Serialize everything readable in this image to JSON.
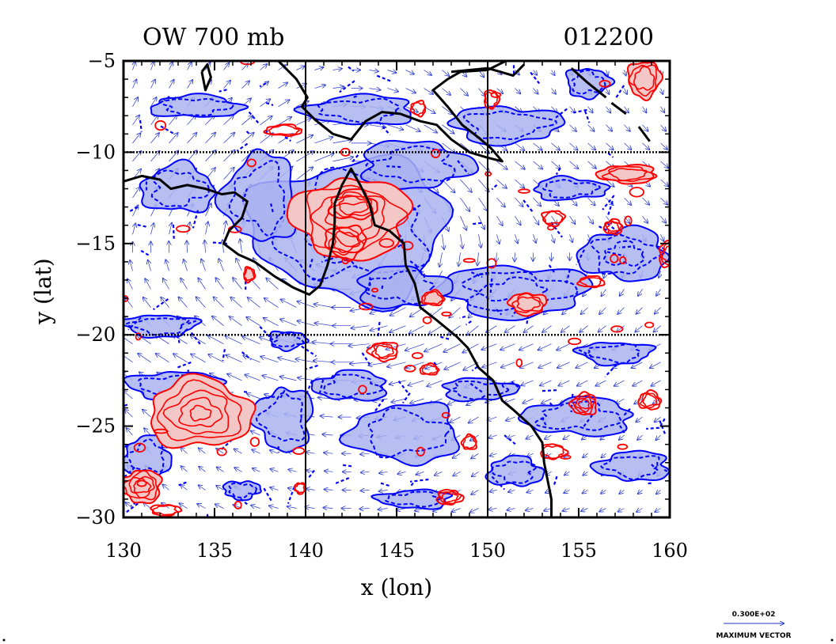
{
  "chart_data": {
    "type": "contour",
    "title_left": "OW 700 mb",
    "title_right": "012200",
    "xlabel": "x (lon)",
    "ylabel": "y (lat)",
    "xlim": [
      130,
      160
    ],
    "ylim": [
      -30,
      -5
    ],
    "xticks": [
      130,
      135,
      140,
      145,
      150,
      155,
      160
    ],
    "yticks": [
      -5,
      -10,
      -15,
      -20,
      -25,
      -30
    ],
    "xtick_labels": [
      "130",
      "135",
      "140",
      "145",
      "150",
      "155",
      "160"
    ],
    "ytick_labels": [
      "−5",
      "−10",
      "−15",
      "−20",
      "−25",
      "−30"
    ],
    "gridlines_x": [
      140,
      150
    ],
    "gridlines_y": [
      -10,
      -20
    ],
    "vector_key_value": "0.300E+02",
    "vector_key_label": "MAXIMUM VECTOR",
    "colors": {
      "positive_line": "#ff0000",
      "positive_fill": "#f4c7c7",
      "negative_line": "#0000ff",
      "negative_fill": "#a9b3f0",
      "vector": "#2233cc",
      "coast": "#000000"
    },
    "coastline": [
      [
        [
          130.0,
          -11.6
        ],
        [
          131.0,
          -11.3
        ],
        [
          132.0,
          -11.5
        ],
        [
          132.6,
          -12.0
        ],
        [
          133.5,
          -11.8
        ],
        [
          134.5,
          -12.0
        ],
        [
          135.4,
          -12.3
        ],
        [
          136.1,
          -12.2
        ],
        [
          136.8,
          -12.7
        ],
        [
          136.5,
          -13.6
        ],
        [
          135.8,
          -14.3
        ],
        [
          135.5,
          -15.0
        ],
        [
          136.3,
          -15.6
        ],
        [
          137.2,
          -16.0
        ],
        [
          138.3,
          -16.8
        ],
        [
          139.3,
          -17.4
        ],
        [
          140.2,
          -17.8
        ],
        [
          140.8,
          -17.3
        ],
        [
          141.2,
          -16.2
        ],
        [
          141.5,
          -15.0
        ],
        [
          141.6,
          -13.8
        ],
        [
          141.6,
          -12.8
        ],
        [
          142.0,
          -11.8
        ],
        [
          142.5,
          -10.9
        ],
        [
          143.0,
          -11.8
        ],
        [
          143.5,
          -12.8
        ],
        [
          143.8,
          -14.0
        ],
        [
          144.6,
          -14.3
        ],
        [
          145.4,
          -15.0
        ],
        [
          145.5,
          -16.2
        ],
        [
          146.0,
          -17.2
        ],
        [
          146.3,
          -18.5
        ],
        [
          147.2,
          -19.2
        ],
        [
          148.3,
          -20.1
        ],
        [
          148.9,
          -20.7
        ],
        [
          149.5,
          -21.8
        ],
        [
          150.3,
          -22.5
        ],
        [
          150.8,
          -23.6
        ],
        [
          151.4,
          -24.1
        ],
        [
          152.4,
          -25.0
        ],
        [
          153.0,
          -25.9
        ],
        [
          153.1,
          -27.0
        ],
        [
          153.3,
          -28.0
        ],
        [
          153.5,
          -29.0
        ],
        [
          153.5,
          -30.0
        ]
      ],
      [
        [
          138.5,
          -5.0
        ],
        [
          139.5,
          -6.0
        ],
        [
          140.1,
          -7.0
        ],
        [
          139.8,
          -7.5
        ],
        [
          140.5,
          -8.2
        ],
        [
          141.5,
          -9.0
        ],
        [
          142.5,
          -9.3
        ],
        [
          143.3,
          -8.3
        ],
        [
          144.2,
          -7.8
        ],
        [
          145.2,
          -7.9
        ],
        [
          146.3,
          -8.3
        ],
        [
          147.2,
          -8.5
        ],
        [
          148.0,
          -9.3
        ],
        [
          149.0,
          -10.0
        ],
        [
          150.0,
          -10.3
        ],
        [
          150.8,
          -10.5
        ],
        [
          150.2,
          -9.8
        ],
        [
          149.5,
          -9.2
        ],
        [
          148.6,
          -8.5
        ],
        [
          147.8,
          -7.5
        ],
        [
          147.0,
          -6.6
        ],
        [
          147.8,
          -6.0
        ],
        [
          148.5,
          -5.6
        ],
        [
          150.0,
          -5.5
        ],
        [
          151.0,
          -5.0
        ]
      ],
      [
        [
          148.0,
          -5.6
        ],
        [
          150.0,
          -5.4
        ],
        [
          151.4,
          -5.8
        ],
        [
          152.0,
          -5.2
        ]
      ],
      [
        [
          154.6,
          -5.4
        ],
        [
          155.5,
          -6.2
        ],
        [
          156.5,
          -7.0
        ]
      ],
      [
        [
          156.8,
          -7.3
        ],
        [
          157.6,
          -7.9
        ]
      ],
      [
        [
          158.3,
          -8.6
        ],
        [
          158.9,
          -9.4
        ]
      ],
      [
        [
          134.3,
          -5.6
        ],
        [
          134.6,
          -5.2
        ],
        [
          134.8,
          -5.9
        ],
        [
          134.5,
          -6.6
        ],
        [
          134.3,
          -5.6
        ]
      ]
    ],
    "positive_regions": [
      {
        "x": 142.5,
        "y": -13.6,
        "rx": 3.2,
        "ry": 2.2,
        "fill": true,
        "level": 3
      },
      {
        "x": 142.2,
        "y": -14.9,
        "rx": 1.1,
        "ry": 0.9,
        "fill": false,
        "level": 2
      },
      {
        "x": 142.6,
        "y": -12.9,
        "rx": 1.3,
        "ry": 0.8,
        "fill": false,
        "level": 2
      },
      {
        "x": 134.2,
        "y": -24.3,
        "rx": 2.8,
        "ry": 1.9,
        "fill": true,
        "level": 4
      },
      {
        "x": 131.0,
        "y": -28.3,
        "rx": 1.1,
        "ry": 0.9,
        "fill": true,
        "level": 3
      },
      {
        "x": 157.7,
        "y": -11.2,
        "rx": 1.6,
        "ry": 0.5,
        "fill": true,
        "level": 2
      },
      {
        "x": 152.2,
        "y": -18.3,
        "rx": 1.0,
        "ry": 0.6,
        "fill": true,
        "level": 2
      },
      {
        "x": 147.0,
        "y": -18.0,
        "rx": 0.6,
        "ry": 0.4,
        "fill": true,
        "level": 1
      },
      {
        "x": 158.6,
        "y": -6.0,
        "rx": 0.9,
        "ry": 1.0,
        "fill": true,
        "level": 2
      },
      {
        "x": 150.2,
        "y": -7.1,
        "rx": 0.4,
        "ry": 0.5,
        "fill": false,
        "level": 1
      },
      {
        "x": 138.8,
        "y": -8.8,
        "rx": 1.0,
        "ry": 0.3,
        "fill": false,
        "level": 1
      },
      {
        "x": 146.2,
        "y": -7.6,
        "rx": 0.4,
        "ry": 0.4,
        "fill": false,
        "level": 1
      },
      {
        "x": 144.3,
        "y": -20.9,
        "rx": 0.8,
        "ry": 0.5,
        "fill": false,
        "level": 2
      },
      {
        "x": 146.8,
        "y": -21.9,
        "rx": 0.5,
        "ry": 0.3,
        "fill": false,
        "level": 1
      },
      {
        "x": 155.3,
        "y": -23.8,
        "rx": 0.7,
        "ry": 0.6,
        "fill": false,
        "level": 3
      },
      {
        "x": 158.9,
        "y": -23.6,
        "rx": 0.6,
        "ry": 0.5,
        "fill": false,
        "level": 2
      },
      {
        "x": 149.0,
        "y": -25.9,
        "rx": 0.4,
        "ry": 0.4,
        "fill": false,
        "level": 1
      },
      {
        "x": 147.9,
        "y": -28.9,
        "rx": 0.7,
        "ry": 0.4,
        "fill": false,
        "level": 2
      },
      {
        "x": 153.6,
        "y": -26.4,
        "rx": 0.7,
        "ry": 0.4,
        "fill": false,
        "level": 1
      },
      {
        "x": 136.9,
        "y": -16.7,
        "rx": 0.3,
        "ry": 0.4,
        "fill": true,
        "level": 1
      },
      {
        "x": 132.3,
        "y": -29.6,
        "rx": 0.8,
        "ry": 0.3,
        "fill": false,
        "level": 1
      },
      {
        "x": 139.7,
        "y": -28.4,
        "rx": 0.3,
        "ry": 0.3,
        "fill": false,
        "level": 1
      },
      {
        "x": 153.6,
        "y": -13.6,
        "rx": 0.6,
        "ry": 0.4,
        "fill": false,
        "level": 1
      },
      {
        "x": 155.7,
        "y": -17.1,
        "rx": 0.7,
        "ry": 0.3,
        "fill": false,
        "level": 1
      },
      {
        "x": 156.9,
        "y": -14.1,
        "rx": 0.5,
        "ry": 0.4,
        "fill": false,
        "level": 2
      },
      {
        "x": 160.0,
        "y": -15.6,
        "rx": 0.6,
        "ry": 0.7,
        "fill": false,
        "level": 2
      }
    ],
    "negative_regions": [
      {
        "x": 142.5,
        "y": -14.2,
        "rx": 5.4,
        "ry": 3.8,
        "level": 2
      },
      {
        "x": 137.5,
        "y": -12.5,
        "rx": 2.0,
        "ry": 2.4,
        "level": 1
      },
      {
        "x": 146.0,
        "y": -10.7,
        "rx": 3.0,
        "ry": 1.3,
        "level": 1
      },
      {
        "x": 151.5,
        "y": -17.6,
        "rx": 4.0,
        "ry": 1.4,
        "level": 2
      },
      {
        "x": 157.5,
        "y": -15.6,
        "rx": 2.4,
        "ry": 1.4,
        "level": 2
      },
      {
        "x": 145.3,
        "y": -17.4,
        "rx": 2.5,
        "ry": 1.1,
        "level": 1
      },
      {
        "x": 143.0,
        "y": -7.7,
        "rx": 3.0,
        "ry": 0.8,
        "level": 1
      },
      {
        "x": 151.0,
        "y": -8.5,
        "rx": 3.0,
        "ry": 1.0,
        "level": 1
      },
      {
        "x": 133.0,
        "y": -12.0,
        "rx": 2.0,
        "ry": 1.3,
        "level": 1
      },
      {
        "x": 134.0,
        "y": -7.5,
        "rx": 2.5,
        "ry": 0.6,
        "level": 1
      },
      {
        "x": 132.0,
        "y": -19.5,
        "rx": 2.0,
        "ry": 0.6,
        "level": 1
      },
      {
        "x": 132.8,
        "y": -22.8,
        "rx": 2.5,
        "ry": 0.8,
        "level": 1
      },
      {
        "x": 131.3,
        "y": -26.7,
        "rx": 1.3,
        "ry": 1.1,
        "level": 1
      },
      {
        "x": 138.8,
        "y": -24.6,
        "rx": 1.6,
        "ry": 1.7,
        "level": 1
      },
      {
        "x": 145.5,
        "y": -25.4,
        "rx": 3.0,
        "ry": 1.6,
        "level": 1
      },
      {
        "x": 142.5,
        "y": -22.8,
        "rx": 2.0,
        "ry": 0.8,
        "level": 1
      },
      {
        "x": 149.5,
        "y": -23.0,
        "rx": 2.0,
        "ry": 0.6,
        "level": 1
      },
      {
        "x": 155.0,
        "y": -24.5,
        "rx": 3.0,
        "ry": 1.0,
        "level": 1
      },
      {
        "x": 158.0,
        "y": -27.2,
        "rx": 2.0,
        "ry": 0.8,
        "level": 1
      },
      {
        "x": 151.5,
        "y": -27.5,
        "rx": 1.5,
        "ry": 0.8,
        "level": 1
      },
      {
        "x": 157.0,
        "y": -21.0,
        "rx": 2.0,
        "ry": 0.6,
        "level": 1
      },
      {
        "x": 154.5,
        "y": -12.0,
        "rx": 2.0,
        "ry": 0.6,
        "level": 1
      },
      {
        "x": 155.5,
        "y": -6.2,
        "rx": 1.2,
        "ry": 0.8,
        "level": 1
      },
      {
        "x": 146.0,
        "y": -29.0,
        "rx": 2.0,
        "ry": 0.5,
        "level": 1
      },
      {
        "x": 136.5,
        "y": -28.5,
        "rx": 1.0,
        "ry": 0.5,
        "level": 1
      },
      {
        "x": 139.0,
        "y": -20.3,
        "rx": 1.0,
        "ry": 0.5,
        "level": 1
      }
    ]
  }
}
